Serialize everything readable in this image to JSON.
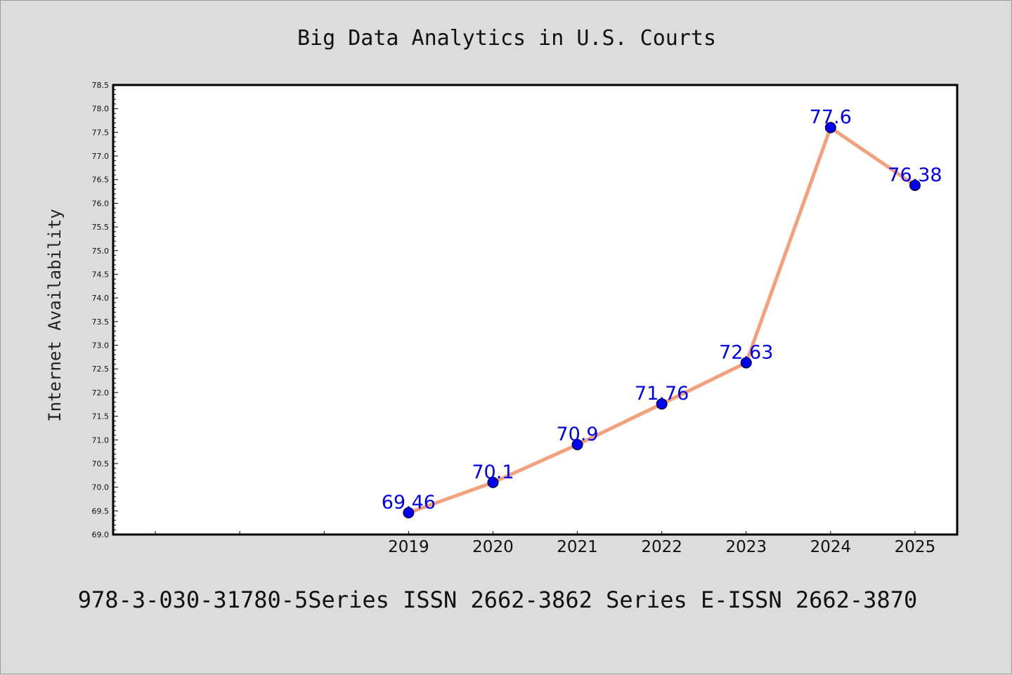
{
  "chart_data": {
    "type": "line",
    "title": "Big Data Analytics in U.S. Courts",
    "xlabel": "",
    "ylabel": "Internet Availability",
    "x": [
      2019,
      2020,
      2021,
      2022,
      2023,
      2024,
      2025
    ],
    "series": [
      {
        "values": [
          69.46,
          70.1,
          70.9,
          71.76,
          72.63,
          77.6,
          76.38
        ]
      }
    ],
    "data_labels": [
      "69.46",
      "70.1",
      "70.9",
      "71.76",
      "72.63",
      "77.6",
      "76.38"
    ],
    "ylim": [
      69.0,
      78.5
    ],
    "yticks": [
      69.0,
      69.5,
      70.0,
      70.5,
      71.0,
      71.5,
      72.0,
      72.5,
      73.0,
      73.5,
      74.0,
      74.5,
      75.0,
      75.5,
      76.0,
      76.5,
      77.0,
      77.5,
      78.0,
      78.5
    ],
    "ytick_labels": [
      "69.0",
      "69.5",
      "70.0",
      "70.5",
      "71.0",
      "71.5",
      "72.0",
      "72.5",
      "73.0",
      "73.5",
      "74.0",
      "74.5",
      "75.0",
      "75.5",
      "76.0",
      "76.5",
      "77.0",
      "77.5",
      "78.0",
      "78.5"
    ],
    "xlim": [
      2015.5,
      2025.5
    ],
    "xticks": [
      2019,
      2020,
      2021,
      2022,
      2023,
      2024,
      2025
    ],
    "xtick_labels": [
      "2019",
      "2020",
      "2021",
      "2022",
      "2023",
      "2024",
      "2025"
    ],
    "grid": false,
    "legend": "none",
    "colors": {
      "line": "#f4a07c",
      "marker": "#0000ee",
      "data_label": "#0000ee",
      "plot_background": "#ffffff",
      "figure_background": "#dcdcdc"
    }
  },
  "footer": "978-3-030-31780-5Series ISSN 2662-3862 Series E-ISSN 2662-3870"
}
